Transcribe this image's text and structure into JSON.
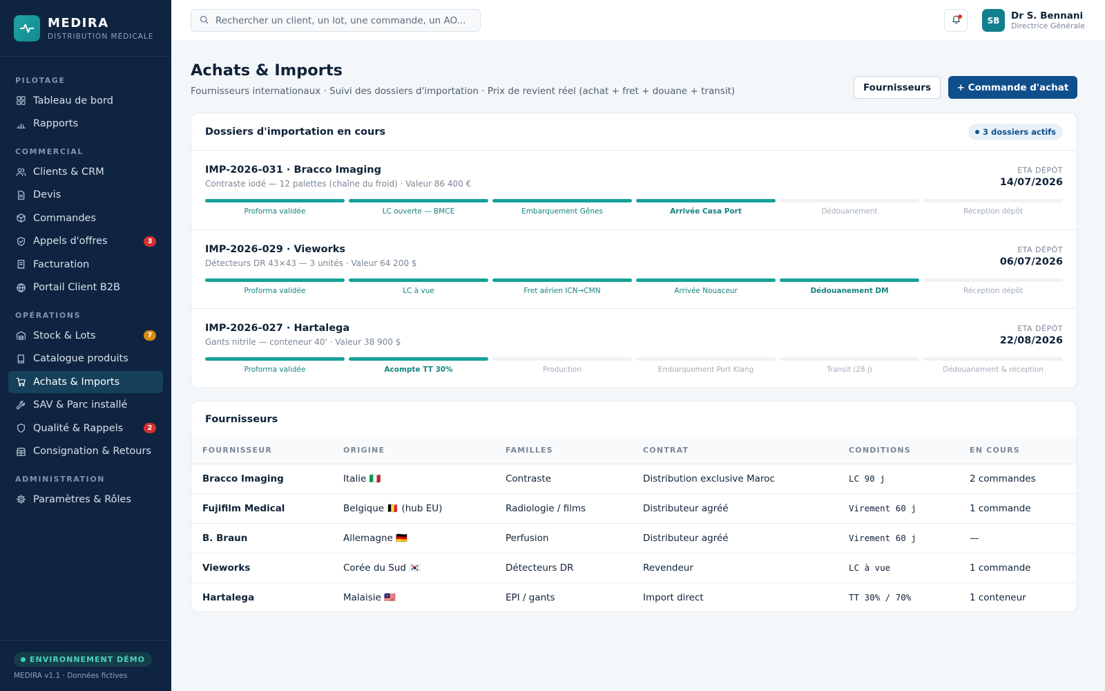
{
  "brand": {
    "name": "MEDIRA",
    "subtitle": "DISTRIBUTION MÉDICALE"
  },
  "sidebar": {
    "sections": [
      {
        "title": "PILOTAGE",
        "items": [
          {
            "label": "Tableau de bord",
            "icon": "grid-icon"
          },
          {
            "label": "Rapports",
            "icon": "bar-chart-icon"
          }
        ]
      },
      {
        "title": "COMMERCIAL",
        "items": [
          {
            "label": "Clients & CRM",
            "icon": "users-icon"
          },
          {
            "label": "Devis",
            "icon": "document-icon"
          },
          {
            "label": "Commandes",
            "icon": "box-icon"
          },
          {
            "label": "Appels d'offres",
            "icon": "shield-icon",
            "badge": "3",
            "badge_color": "#d62f2f"
          },
          {
            "label": "Facturation",
            "icon": "receipt-icon"
          },
          {
            "label": "Portail Client B2B",
            "icon": "globe-icon"
          }
        ]
      },
      {
        "title": "OPÉRATIONS",
        "items": [
          {
            "label": "Stock & Lots",
            "icon": "warehouse-icon",
            "badge": "7",
            "badge_color": "#d98a14"
          },
          {
            "label": "Catalogue produits",
            "icon": "book-icon"
          },
          {
            "label": "Achats & Imports",
            "icon": "cart-icon",
            "active": true
          },
          {
            "label": "SAV & Parc installé",
            "icon": "wrench-icon"
          },
          {
            "label": "Qualité & Rappels",
            "icon": "shield-check-icon",
            "badge": "2",
            "badge_color": "#d62f2f"
          },
          {
            "label": "Consignation & Retours",
            "icon": "store-icon"
          }
        ]
      },
      {
        "title": "ADMINISTRATION",
        "items": [
          {
            "label": "Paramètres & Rôles",
            "icon": "gear-icon"
          }
        ]
      }
    ],
    "footer": {
      "env": "ENVIRONNEMENT DÉMO",
      "version": "MEDIRA v1.1 · Données fictives"
    }
  },
  "topbar": {
    "search_placeholder": "Rechercher un client, un lot, une commande, un AO...",
    "user": {
      "initials": "SB",
      "name": "Dr S. Bennani",
      "role": "Directrice Générale"
    }
  },
  "page": {
    "title": "Achats & Imports",
    "subtitle": "Fournisseurs internationaux · Suivi des dossiers d'importation · Prix de revient réel (achat + fret + douane + transit)",
    "btn_suppliers": "Fournisseurs",
    "btn_new_order": "+ Commande d'achat"
  },
  "imports": {
    "title": "Dossiers d'importation en cours",
    "badge": "3 dossiers actifs",
    "eta_label": "ETA DÉPÔT",
    "dossiers": [
      {
        "title": "IMP-2026-031 · Bracco Imaging",
        "desc": "Contraste iodé — 12 palettes (chaîne du froid) · Valeur 86 400 €",
        "eta": "14/07/2026",
        "steps": [
          {
            "label": "Proforma validée",
            "state": "done"
          },
          {
            "label": "LC ouverte — BMCE",
            "state": "done"
          },
          {
            "label": "Embarquement Gênes",
            "state": "done"
          },
          {
            "label": "Arrivée Casa Port",
            "state": "current"
          },
          {
            "label": "Dédouanement",
            "state": "pending"
          },
          {
            "label": "Réception dépôt",
            "state": "pending"
          }
        ]
      },
      {
        "title": "IMP-2026-029 · Vieworks",
        "desc": "Détecteurs DR 43×43 — 3 unités · Valeur 64 200 $",
        "eta": "06/07/2026",
        "steps": [
          {
            "label": "Proforma validée",
            "state": "done"
          },
          {
            "label": "LC à vue",
            "state": "done"
          },
          {
            "label": "Fret aérien ICN→CMN",
            "state": "done"
          },
          {
            "label": "Arrivée Nouaceur",
            "state": "done"
          },
          {
            "label": "Dédouanement DM",
            "state": "current"
          },
          {
            "label": "Réception dépôt",
            "state": "pending"
          }
        ]
      },
      {
        "title": "IMP-2026-027 · Hartalega",
        "desc": "Gants nitrile — conteneur 40' · Valeur 38 900 $",
        "eta": "22/08/2026",
        "steps": [
          {
            "label": "Proforma validée",
            "state": "done"
          },
          {
            "label": "Acompte TT 30%",
            "state": "current"
          },
          {
            "label": "Production",
            "state": "pending"
          },
          {
            "label": "Embarquement Port Klang",
            "state": "pending"
          },
          {
            "label": "Transit (28 j)",
            "state": "pending"
          },
          {
            "label": "Dédouanement & réception",
            "state": "pending"
          }
        ]
      }
    ]
  },
  "suppliers": {
    "title": "Fournisseurs",
    "columns": [
      "FOURNISSEUR",
      "ORIGINE",
      "FAMILLES",
      "CONTRAT",
      "CONDITIONS",
      "EN COURS"
    ],
    "rows": [
      [
        "Bracco Imaging",
        "Italie 🇮🇹",
        "Contraste",
        "Distribution exclusive Maroc",
        "LC 90 j",
        "2 commandes"
      ],
      [
        "Fujifilm Medical",
        "Belgique 🇧🇪 (hub EU)",
        "Radiologie / films",
        "Distributeur agréé",
        "Virement 60 j",
        "1 commande"
      ],
      [
        "B. Braun",
        "Allemagne 🇩🇪",
        "Perfusion",
        "Distributeur agréé",
        "Virement 60 j",
        "—"
      ],
      [
        "Vieworks",
        "Corée du Sud 🇰🇷",
        "Détecteurs DR",
        "Revendeur",
        "LC à vue",
        "1 commande"
      ],
      [
        "Hartalega",
        "Malaisie 🇲🇾",
        "EPI / gants",
        "Import direct",
        "TT 30% / 70%",
        "1 conteneur"
      ]
    ]
  }
}
